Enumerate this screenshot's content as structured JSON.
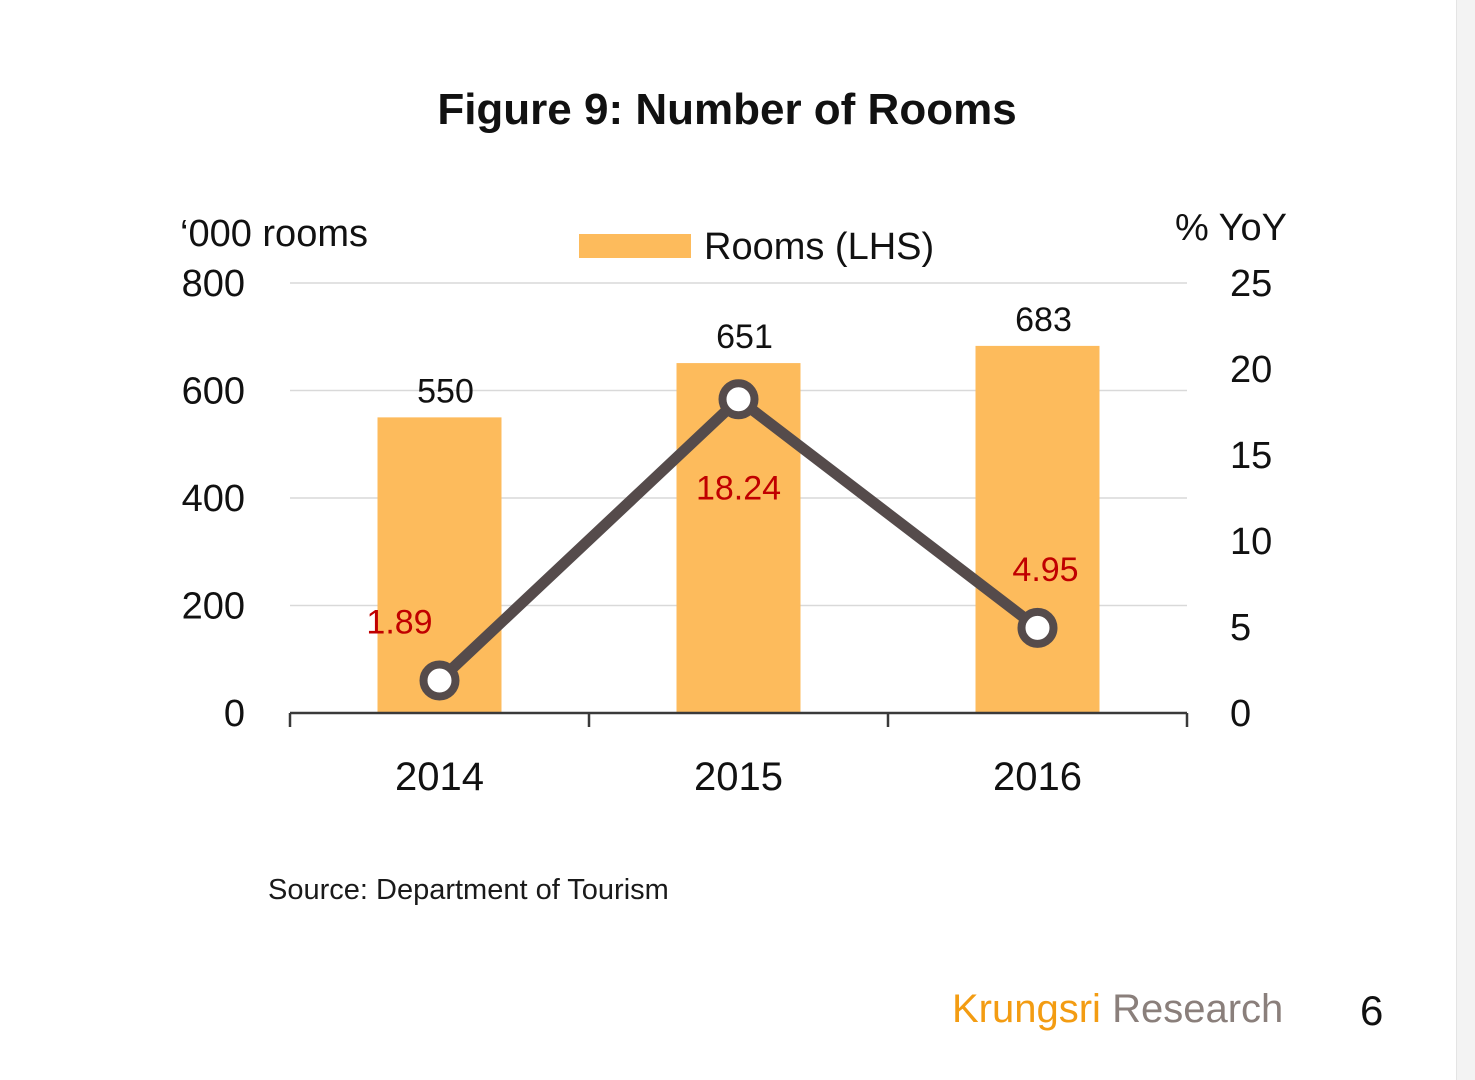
{
  "chart_data": {
    "type": "bar",
    "title": "Figure 9: Number of Rooms",
    "categories": [
      "2014",
      "2015",
      "2016"
    ],
    "y_left_label": "‘000 rooms",
    "y_right_label": "% YoY",
    "ylim_left": [
      0,
      800
    ],
    "ylim_right": [
      0,
      25
    ],
    "y_left_ticks": [
      "0",
      "200",
      "400",
      "600",
      "800"
    ],
    "y_right_ticks": [
      "0",
      "5",
      "10",
      "15",
      "20",
      "25"
    ],
    "grid": true,
    "legend_position": "top-center",
    "series": [
      {
        "name": "Rooms (LHS)",
        "type": "bar",
        "axis": "left",
        "values": [
          550,
          651,
          683
        ],
        "labels": [
          "550",
          "651",
          "683"
        ],
        "color": "#fdbb5c"
      },
      {
        "type": "line",
        "axis": "right",
        "values": [
          1.89,
          18.24,
          4.95
        ],
        "labels": [
          "1.89",
          "18.24",
          "4.95"
        ],
        "color": "#554b4b",
        "label_color": "#c00000"
      }
    ]
  },
  "source": "Source: Department of Tourism",
  "footer": {
    "brand_primary": "Krungsri",
    "brand_secondary": "Research",
    "page_number": "6"
  }
}
